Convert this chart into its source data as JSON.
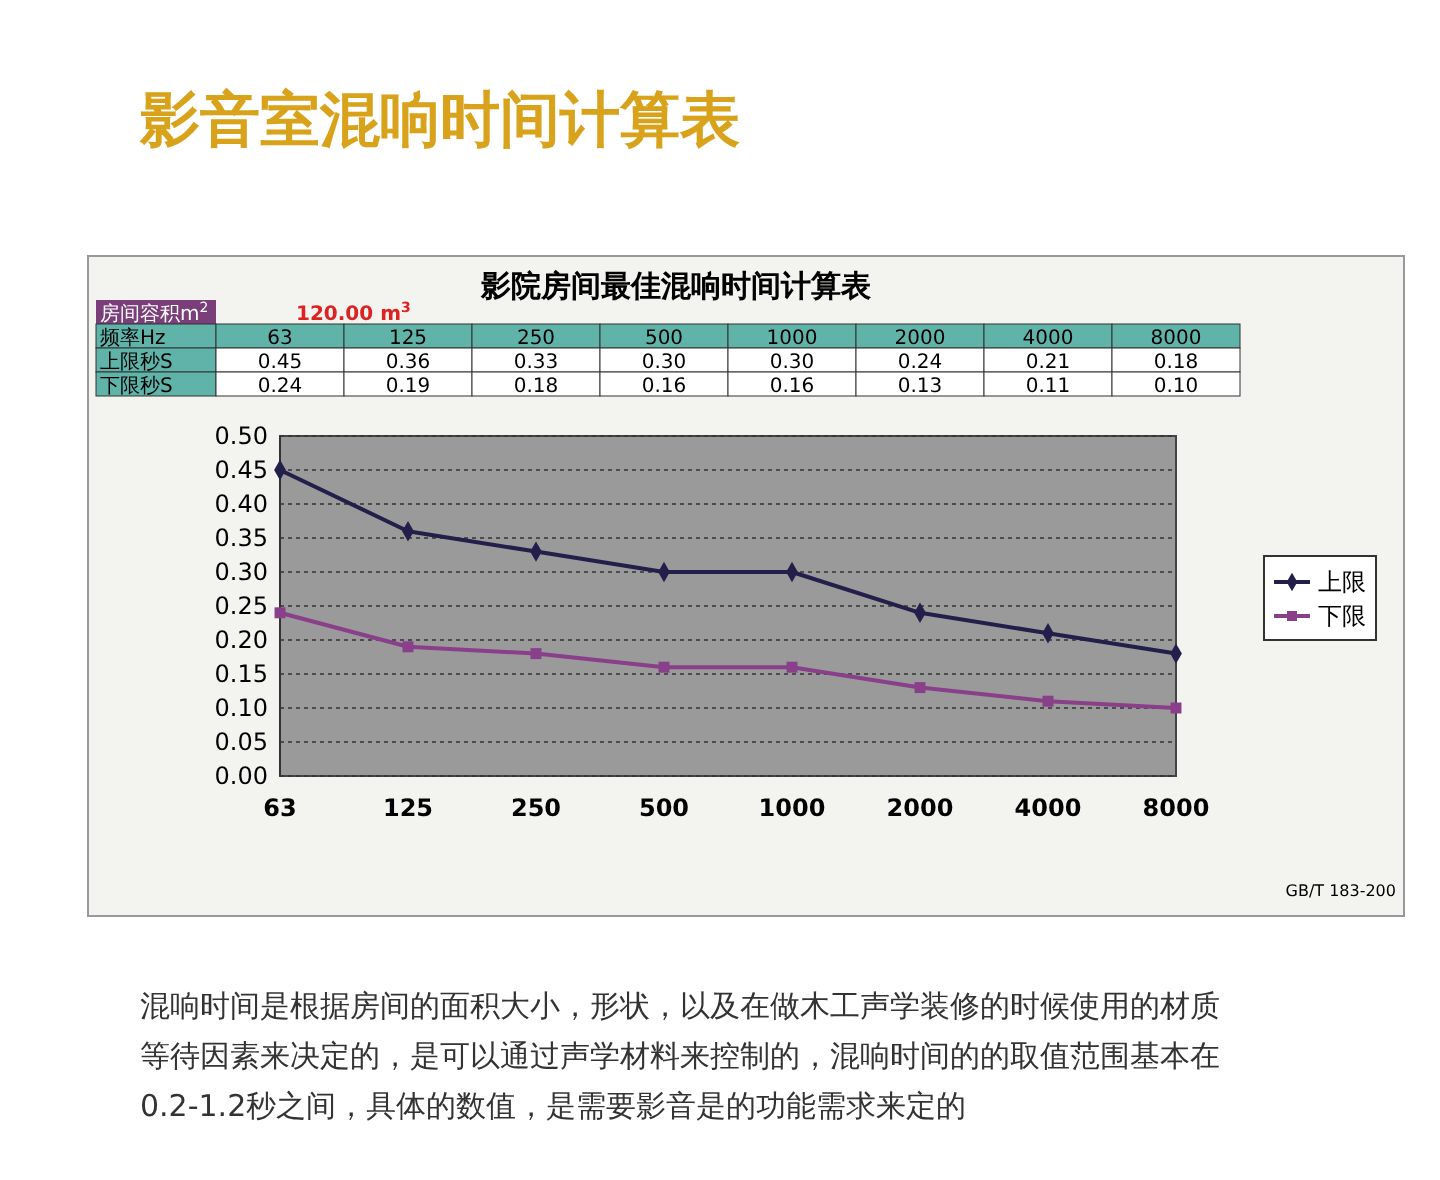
{
  "chart_data": {
    "type": "line",
    "title": "影音室混响时间计算表",
    "subtitle": "影院房间最佳混响时间计算表",
    "categories": [
      "63",
      "125",
      "250",
      "500",
      "1000",
      "2000",
      "4000",
      "8000"
    ],
    "series": [
      {
        "name": "上限",
        "color": "#22204a",
        "marker": "diamond",
        "values": [
          0.45,
          0.36,
          0.33,
          0.3,
          0.3,
          0.24,
          0.21,
          0.18
        ],
        "value_labels": [
          "0.45",
          "0.36",
          "0.33",
          "0.30",
          "0.30",
          "0.24",
          "0.21",
          "0.18"
        ]
      },
      {
        "name": "下限",
        "color": "#8a3f8a",
        "marker": "square",
        "values": [
          0.24,
          0.19,
          0.18,
          0.16,
          0.16,
          0.13,
          0.11,
          0.1
        ],
        "value_labels": [
          "0.24",
          "0.19",
          "0.18",
          "0.16",
          "0.16",
          "0.13",
          "0.11",
          "0.10"
        ]
      }
    ],
    "ylim": [
      0,
      0.5
    ],
    "yticks": [
      {
        "value": 0,
        "label": "0.00"
      },
      {
        "value": 0.05,
        "label": "0.05"
      },
      {
        "value": 0.1,
        "label": "0.10"
      },
      {
        "value": 0.15,
        "label": "0.15"
      },
      {
        "value": 0.2,
        "label": "0.20"
      },
      {
        "value": 0.25,
        "label": "0.25"
      },
      {
        "value": 0.3,
        "label": "0.30"
      },
      {
        "value": 0.35,
        "label": "0.35"
      },
      {
        "value": 0.4,
        "label": "0.40"
      },
      {
        "value": 0.45,
        "label": "0.45"
      },
      {
        "value": 0.5,
        "label": "0.50"
      }
    ],
    "grid": "y",
    "legend": "right",
    "line_style": "solid",
    "annotations": [
      "房间容积m$^{2}$",
      "120.00 m$^{3}$",
      "频率Hz",
      "上限秒S",
      "下限秒S",
      "GB/T 183-200",
      "混响时间是根据房间的面积大小，形状，以及在做木工声学装修的时候使用的材质等待因素来决定的，是可以通过声学材料来控制的，混响时间的的取值范围基本在0.2-1.2秒之间，具体的数值，是需要影音是的功能需求来定的"
    ]
  }
}
